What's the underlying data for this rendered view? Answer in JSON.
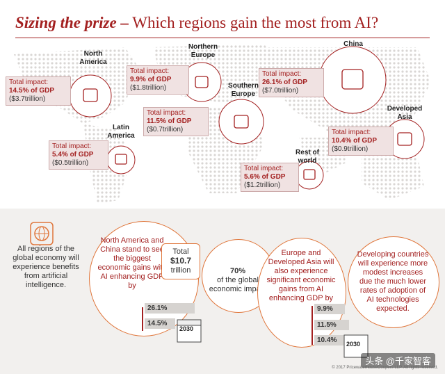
{
  "title": {
    "bold": "Sizing the prize –",
    "rest": " Which regions gain the most from AI?"
  },
  "regions": [
    {
      "name": "North America",
      "impact_label": "Total impact:",
      "gdp": "14.5% of GDP",
      "trillion": "($3.7trillion)"
    },
    {
      "name": "Northern Europe",
      "impact_label": "Total impact:",
      "gdp": "9.9% of GDP",
      "trillion": "($1.8trillion)"
    },
    {
      "name": "China",
      "impact_label": "Total impact:",
      "gdp": "26.1% of GDP",
      "trillion": "($7.0trillion)"
    },
    {
      "name": "Southern Europe",
      "impact_label": "Total impact:",
      "gdp": "11.5% of GDP",
      "trillion": "($0.7trillion)"
    },
    {
      "name": "Latin America",
      "impact_label": "Total impact:",
      "gdp": "5.4% of GDP",
      "trillion": "($0.5trillion)"
    },
    {
      "name": "Developed Asia",
      "impact_label": "Total impact:",
      "gdp": "10.4% of GDP",
      "trillion": "($0.9trillion)"
    },
    {
      "name": "Rest of world",
      "impact_label": "Total impact:",
      "gdp": "5.6% of GDP",
      "trillion": "($1.2trillion)"
    }
  ],
  "bottom": {
    "intro": "All regions of the global economy will experience benefits from artificial intelligence.",
    "na_china": "North America and China stand to see the biggest economic gains with AI enhancing GDP by",
    "total_label": "Total",
    "total_value": "$10.7",
    "total_unit": "trillion",
    "share_value": "70%",
    "share_text": "of the global economic impact",
    "na_china_bars": [
      "26.1%",
      "14.5%"
    ],
    "na_china_year": "2030",
    "europe_asia": "Europe and Developed Asia will also experience significant economic gains from AI enhancing GDP by",
    "europe_asia_bars": [
      "9.9%",
      "11.5%",
      "10.4%"
    ],
    "europe_asia_year": "2030",
    "developing": "Developing countries will experience more modest increases due the much lower rates of adoption of AI technologies expected."
  },
  "copyright": "© 2017 PricewaterhouseCoopers LLP. All rights reserved.",
  "watermark": "头条 @千家智客",
  "colors": {
    "accent": "#a32020",
    "orange": "#e0763b"
  }
}
